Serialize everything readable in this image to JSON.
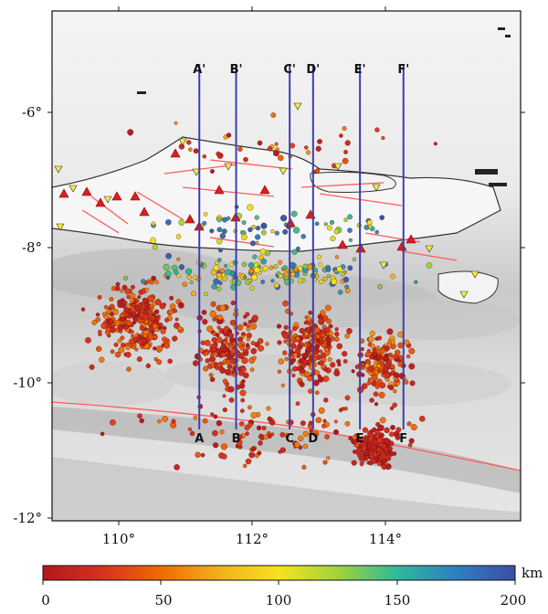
{
  "map": {
    "lat_ticks": [
      "-6°",
      "-8°",
      "-10°",
      "-12°"
    ],
    "lon_ticks": [
      "110°",
      "112°",
      "114°"
    ],
    "lon_range": [
      109,
      116
    ],
    "lat_range": [
      -12,
      -4.5
    ]
  },
  "profiles": [
    {
      "start": "A",
      "end": "A'",
      "lon": 111.2
    },
    {
      "start": "B",
      "end": "B'",
      "lon": 111.75
    },
    {
      "start": "C",
      "end": "C'",
      "lon": 112.55
    },
    {
      "start": "D",
      "end": "D'",
      "lon": 112.9
    },
    {
      "start": "E",
      "end": "E'",
      "lon": 113.6
    },
    {
      "start": "F",
      "end": "F'",
      "lon": 114.25
    }
  ],
  "colorbar": {
    "unit": "km",
    "ticks": [
      "0",
      "50",
      "100",
      "150",
      "200"
    ],
    "min": 0,
    "max": 200,
    "stops": [
      "#b2181b",
      "#d7301f",
      "#ef6c00",
      "#f2b01e",
      "#f7e21d",
      "#9fd33c",
      "#2fb99a",
      "#2f7fc1",
      "#3a4fa3"
    ]
  },
  "colors": {
    "profile_line": "#3b3fb0",
    "fault": "#ff5050",
    "volcano": "#e41a1c",
    "coast": "#333333"
  }
}
